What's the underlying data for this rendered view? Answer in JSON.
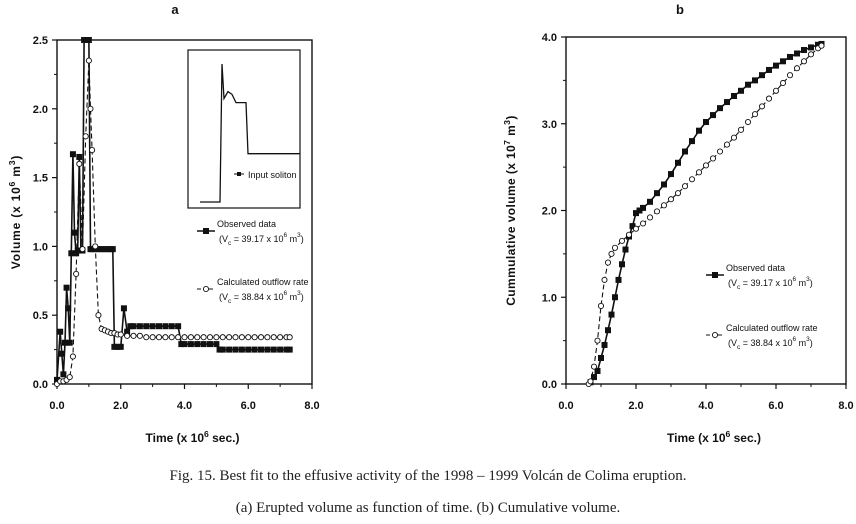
{
  "figure": {
    "caption_line1": "Fig. 15. Best fit to the effusive activity of the 1998 – 1999 Volcán de Colima eruption.",
    "caption_line2": "(a) Erupted volume as function of time. (b) Cumulative volume."
  },
  "chart_data": [
    {
      "panel_label": "a",
      "type": "line",
      "title": "",
      "xlabel": "Time (x 10",
      "xlabel_exp": "6",
      "xlabel_tail": " sec.)",
      "ylabel": "Volume (x 10",
      "ylabel_exp": "6",
      "ylabel_unit": " m",
      "ylabel_unit_exp": "3",
      "ylabel_tail": ")",
      "xlim": [
        0,
        8
      ],
      "ylim": [
        0,
        2.5
      ],
      "xticks": [
        0,
        2,
        4,
        6,
        8
      ],
      "xtick_labels": [
        "0.0",
        "2.0",
        "4.0",
        "6.0",
        "8.0"
      ],
      "yticks": [
        0,
        0.5,
        1.0,
        1.5,
        2.0,
        2.5
      ],
      "ytick_labels": [
        "0.0",
        "0.5",
        "1.0",
        "1.5",
        "2.0",
        "2.5"
      ],
      "series": [
        {
          "name": "Observed data",
          "legend_sub": "(V",
          "legend_sub_c": "c",
          "legend_val": " = 39.17 x 10",
          "legend_exp": "6",
          "legend_unit": " m",
          "legend_unit_exp": "3",
          "legend_close": ")",
          "style": "solid-square",
          "x": [
            0.0,
            0.1,
            0.15,
            0.2,
            0.25,
            0.3,
            0.35,
            0.4,
            0.45,
            0.5,
            0.55,
            0.6,
            0.65,
            0.7,
            0.75,
            0.8,
            0.85,
            0.9,
            0.95,
            1.0,
            1.05,
            1.1,
            1.2,
            1.3,
            1.4,
            1.5,
            1.6,
            1.7,
            1.75,
            1.8,
            1.9,
            2.0,
            2.1,
            2.2,
            2.3,
            2.4,
            2.6,
            2.8,
            3.0,
            3.2,
            3.4,
            3.6,
            3.8,
            3.9,
            4.0,
            4.2,
            4.4,
            4.6,
            4.8,
            5.0,
            5.1,
            5.2,
            5.4,
            5.6,
            5.8,
            6.0,
            6.2,
            6.4,
            6.6,
            6.8,
            7.0,
            7.2,
            7.3
          ],
          "values": [
            0.03,
            0.38,
            0.22,
            0.07,
            0.3,
            0.7,
            0.55,
            0.3,
            0.95,
            1.67,
            1.1,
            0.95,
            0.97,
            1.65,
            0.97,
            0.97,
            2.5,
            2.5,
            2.5,
            2.5,
            0.98,
            0.98,
            0.98,
            0.98,
            0.98,
            0.98,
            0.98,
            0.98,
            0.98,
            0.27,
            0.27,
            0.27,
            0.55,
            0.38,
            0.42,
            0.42,
            0.42,
            0.42,
            0.42,
            0.42,
            0.42,
            0.42,
            0.42,
            0.29,
            0.29,
            0.29,
            0.29,
            0.29,
            0.29,
            0.29,
            0.25,
            0.25,
            0.25,
            0.25,
            0.25,
            0.25,
            0.25,
            0.25,
            0.25,
            0.25,
            0.25,
            0.25,
            0.25
          ]
        },
        {
          "name": "Calculated outflow rate",
          "legend_sub": "(V",
          "legend_sub_c": "c",
          "legend_val": " = 38.84 x 10",
          "legend_exp": "6",
          "legend_unit": " m",
          "legend_unit_exp": "3",
          "legend_close": ")",
          "style": "dash-open-circle",
          "x": [
            0.0,
            0.1,
            0.2,
            0.3,
            0.4,
            0.5,
            0.6,
            0.7,
            0.8,
            0.9,
            1.0,
            1.05,
            1.1,
            1.2,
            1.3,
            1.4,
            1.5,
            1.6,
            1.7,
            1.8,
            1.9,
            2.0,
            2.2,
            2.4,
            2.6,
            2.8,
            3.0,
            3.2,
            3.4,
            3.6,
            3.8,
            4.0,
            4.2,
            4.4,
            4.6,
            4.8,
            5.0,
            5.2,
            5.4,
            5.6,
            5.8,
            6.0,
            6.2,
            6.4,
            6.6,
            6.8,
            7.0,
            7.2,
            7.3
          ],
          "values": [
            0.0,
            0.02,
            0.02,
            0.03,
            0.05,
            0.2,
            0.8,
            1.6,
            0.98,
            1.8,
            2.35,
            2.0,
            1.7,
            1.0,
            0.5,
            0.4,
            0.39,
            0.38,
            0.37,
            0.37,
            0.36,
            0.36,
            0.35,
            0.35,
            0.35,
            0.34,
            0.34,
            0.34,
            0.34,
            0.34,
            0.34,
            0.34,
            0.34,
            0.34,
            0.34,
            0.34,
            0.34,
            0.34,
            0.34,
            0.34,
            0.34,
            0.34,
            0.34,
            0.34,
            0.34,
            0.34,
            0.34,
            0.34,
            0.34
          ]
        }
      ],
      "inset": {
        "legend_label": "Input soliton",
        "x": [
          0,
          0.1,
          0.2,
          0.22,
          0.24,
          0.28,
          0.32,
          0.36,
          0.42,
          0.46,
          0.48,
          1.0
        ],
        "values": [
          0.0,
          0.0,
          0.0,
          1.0,
          0.75,
          0.8,
          0.78,
          0.72,
          0.72,
          0.72,
          0.35,
          0.35
        ]
      }
    },
    {
      "panel_label": "b",
      "type": "line",
      "title": "",
      "xlabel": "Time (x 10",
      "xlabel_exp": "6",
      "xlabel_tail": " sec.)",
      "ylabel": "Cummulative volume (x 10",
      "ylabel_exp": "7",
      "ylabel_unit": " m",
      "ylabel_unit_exp": "3",
      "ylabel_tail": ")",
      "xlim": [
        0,
        8
      ],
      "ylim": [
        0,
        4
      ],
      "xticks": [
        0,
        2,
        4,
        6,
        8
      ],
      "xtick_labels": [
        "0.0",
        "2.0",
        "4.0",
        "6.0",
        "8.0"
      ],
      "yticks": [
        0,
        1,
        2,
        3,
        4
      ],
      "ytick_labels": [
        "0.0",
        "1.0",
        "2.0",
        "3.0",
        "4.0"
      ],
      "series": [
        {
          "name": "Observed data",
          "legend_sub": "(V",
          "legend_sub_c": "c",
          "legend_val": " = 39.17 x 10",
          "legend_exp": "6",
          "legend_unit": " m",
          "legend_unit_exp": "3",
          "legend_close": ")",
          "style": "solid-square",
          "x": [
            0.7,
            0.8,
            0.9,
            1.0,
            1.1,
            1.2,
            1.3,
            1.4,
            1.5,
            1.6,
            1.7,
            1.8,
            1.9,
            2.0,
            2.1,
            2.2,
            2.4,
            2.6,
            2.8,
            3.0,
            3.2,
            3.4,
            3.6,
            3.8,
            4.0,
            4.2,
            4.4,
            4.6,
            4.8,
            5.0,
            5.2,
            5.4,
            5.6,
            5.8,
            6.0,
            6.2,
            6.4,
            6.6,
            6.8,
            7.0,
            7.2,
            7.3
          ],
          "values": [
            0.02,
            0.08,
            0.15,
            0.3,
            0.45,
            0.62,
            0.8,
            1.0,
            1.2,
            1.38,
            1.55,
            1.7,
            1.82,
            1.97,
            2.0,
            2.03,
            2.1,
            2.2,
            2.3,
            2.42,
            2.55,
            2.68,
            2.8,
            2.92,
            3.02,
            3.1,
            3.18,
            3.25,
            3.32,
            3.38,
            3.45,
            3.5,
            3.56,
            3.62,
            3.67,
            3.72,
            3.77,
            3.81,
            3.85,
            3.88,
            3.91,
            3.92
          ]
        },
        {
          "name": "Calculated outflow rate",
          "legend_sub": "(V",
          "legend_sub_c": "c",
          "legend_val": " = 38.84 x 10",
          "legend_exp": "6",
          "legend_unit": " m",
          "legend_unit_exp": "3",
          "legend_close": ")",
          "style": "dash-open-circle",
          "x": [
            0.65,
            0.7,
            0.8,
            0.9,
            1.0,
            1.1,
            1.2,
            1.3,
            1.4,
            1.6,
            1.8,
            2.0,
            2.2,
            2.4,
            2.6,
            2.8,
            3.0,
            3.2,
            3.4,
            3.6,
            3.8,
            4.0,
            4.2,
            4.4,
            4.6,
            4.8,
            5.0,
            5.2,
            5.4,
            5.6,
            5.8,
            6.0,
            6.2,
            6.4,
            6.6,
            6.8,
            7.0,
            7.2,
            7.3
          ],
          "values": [
            0.0,
            0.03,
            0.2,
            0.5,
            0.9,
            1.2,
            1.4,
            1.5,
            1.57,
            1.65,
            1.72,
            1.79,
            1.85,
            1.92,
            1.99,
            2.06,
            2.13,
            2.2,
            2.28,
            2.36,
            2.44,
            2.52,
            2.6,
            2.68,
            2.76,
            2.84,
            2.93,
            3.02,
            3.11,
            3.2,
            3.29,
            3.38,
            3.47,
            3.56,
            3.64,
            3.72,
            3.8,
            3.87,
            3.9
          ]
        }
      ]
    }
  ]
}
